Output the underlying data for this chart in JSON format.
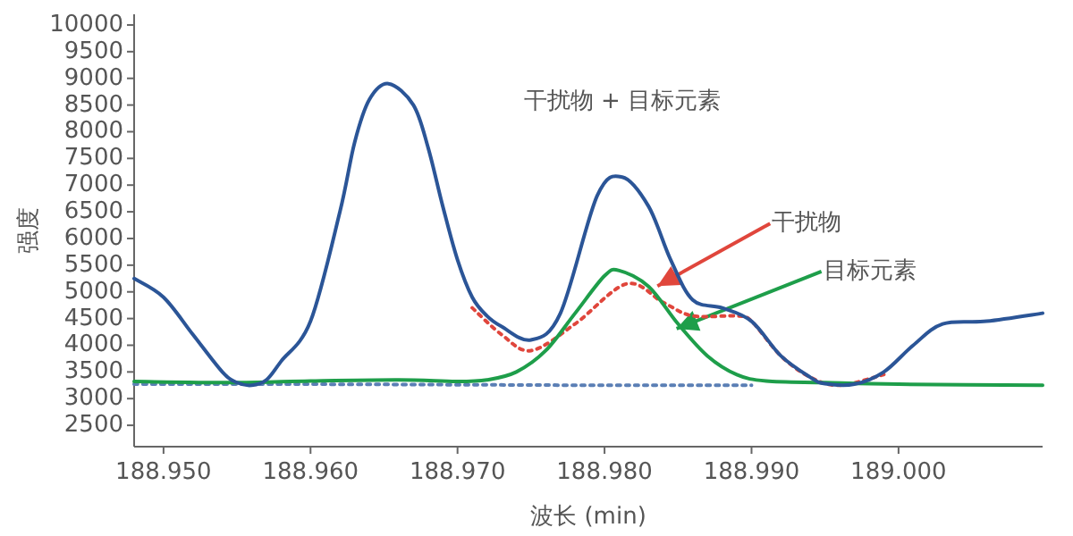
{
  "chart_data": {
    "type": "line",
    "xlabel": "波长 (min)",
    "ylabel": "强度",
    "xlim": [
      188.948,
      189.0098
    ],
    "ylim": [
      2100,
      10200
    ],
    "xticks": [
      {
        "value": 188.95,
        "label": "188.950"
      },
      {
        "value": 188.96,
        "label": "188.960"
      },
      {
        "value": 188.97,
        "label": "188.970"
      },
      {
        "value": 188.98,
        "label": "188.980"
      },
      {
        "value": 188.99,
        "label": "188.990"
      },
      {
        "value": 189.0,
        "label": "189.000"
      }
    ],
    "yticks": [
      2500,
      3000,
      3500,
      4000,
      4500,
      5000,
      5500,
      6000,
      6500,
      7000,
      7500,
      8000,
      8500,
      9000,
      9500,
      10000
    ],
    "grid": false,
    "marker": "none",
    "series": [
      {
        "color": "#5b7fb5",
        "line_style": "dotted",
        "x": [
          188.948,
          188.96,
          188.97,
          188.98,
          188.99
        ],
        "values": [
          3270,
          3270,
          3260,
          3250,
          3250
        ]
      },
      {
        "color": "#e0463c",
        "line_style": "dotted",
        "x": [
          188.971,
          188.973,
          188.975,
          188.978,
          188.9815,
          188.984,
          188.986,
          188.989,
          188.99,
          188.992,
          188.994,
          188.996,
          188.999
        ],
        "values": [
          4700,
          4200,
          3900,
          4400,
          5150,
          4800,
          4550,
          4550,
          4450,
          3800,
          3400,
          3250,
          3450
        ]
      },
      {
        "color": "#1e9e4a",
        "line_style": "solid",
        "x": [
          188.948,
          188.955,
          188.96,
          188.966,
          188.97,
          188.972,
          188.974,
          188.976,
          188.978,
          188.98,
          188.981,
          188.983,
          188.985,
          188.987,
          188.989,
          188.991,
          188.995,
          189.0,
          189.0098
        ],
        "values": [
          3320,
          3300,
          3330,
          3350,
          3320,
          3350,
          3500,
          3900,
          4600,
          5300,
          5400,
          5100,
          4400,
          3800,
          3450,
          3330,
          3300,
          3270,
          3250
        ]
      },
      {
        "color": "#2b5597",
        "line_style": "solid",
        "x": [
          188.948,
          188.95,
          188.952,
          188.954,
          188.955,
          188.956,
          188.957,
          188.958,
          188.96,
          188.962,
          188.963,
          188.964,
          188.9653,
          188.967,
          188.968,
          188.969,
          188.97,
          188.971,
          188.972,
          188.973,
          188.975,
          188.977,
          188.9795,
          188.9812,
          188.983,
          188.9845,
          188.986,
          188.988,
          188.99,
          188.992,
          188.994,
          188.995,
          188.997,
          188.999,
          189.001,
          189.003,
          189.006,
          189.0098
        ],
        "values": [
          5250,
          4900,
          4200,
          3500,
          3300,
          3250,
          3350,
          3700,
          4450,
          6500,
          7800,
          8600,
          8900,
          8500,
          7700,
          6600,
          5600,
          4900,
          4550,
          4350,
          4100,
          4600,
          6800,
          7150,
          6600,
          5600,
          4850,
          4700,
          4450,
          3800,
          3400,
          3280,
          3270,
          3500,
          4000,
          4400,
          4450,
          4600
        ]
      }
    ],
    "annotations": [
      {
        "text": "干扰物 + 目标元素",
        "x": 188.9812,
        "y": 7150
      },
      {
        "text": "干扰物",
        "x": 188.9836,
        "y": 5110
      },
      {
        "text": "目标元素",
        "x": 188.9849,
        "y": 4310
      }
    ]
  }
}
